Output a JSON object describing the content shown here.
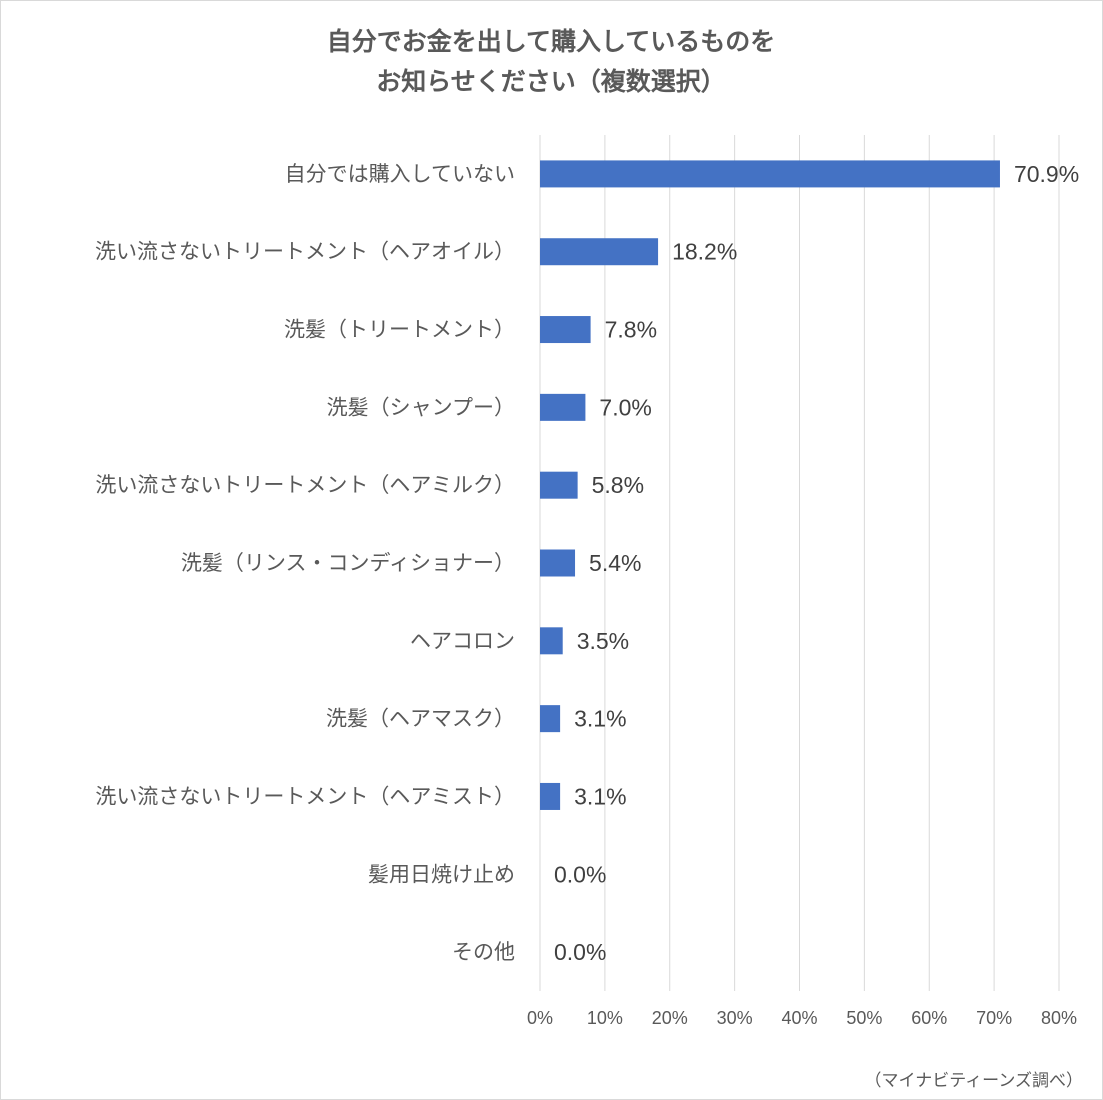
{
  "chart_data": {
    "type": "bar",
    "orientation": "horizontal",
    "title_lines": [
      "自分でお金を出して購入しているものを",
      "お知らせください（複数選択）"
    ],
    "categories": [
      "自分では購入していない",
      "洗い流さないトリートメント（ヘアオイル）",
      "洗髪（トリートメント）",
      "洗髪（シャンプー）",
      "洗い流さないトリートメント（ヘアミルク）",
      "洗髪（リンス・コンディショナー）",
      "ヘアコロン",
      "洗髪（ヘアマスク）",
      "洗い流さないトリートメント（ヘアミスト）",
      "髪用日焼け止め",
      "その他"
    ],
    "values": [
      70.9,
      18.2,
      7.8,
      7.0,
      5.8,
      5.4,
      3.5,
      3.1,
      3.1,
      0.0,
      0.0
    ],
    "value_labels": [
      "70.9%",
      "18.2%",
      "7.8%",
      "7.0%",
      "5.8%",
      "5.4%",
      "3.5%",
      "3.1%",
      "3.1%",
      "0.0%",
      "0.0%"
    ],
    "xlim": [
      0,
      80
    ],
    "x_ticks": [
      "0%",
      "10%",
      "20%",
      "30%",
      "40%",
      "50%",
      "60%",
      "70%",
      "80%"
    ],
    "grid": true,
    "bar_color": "#4472C4",
    "source_note": "（マイナビティーンズ調べ）"
  }
}
